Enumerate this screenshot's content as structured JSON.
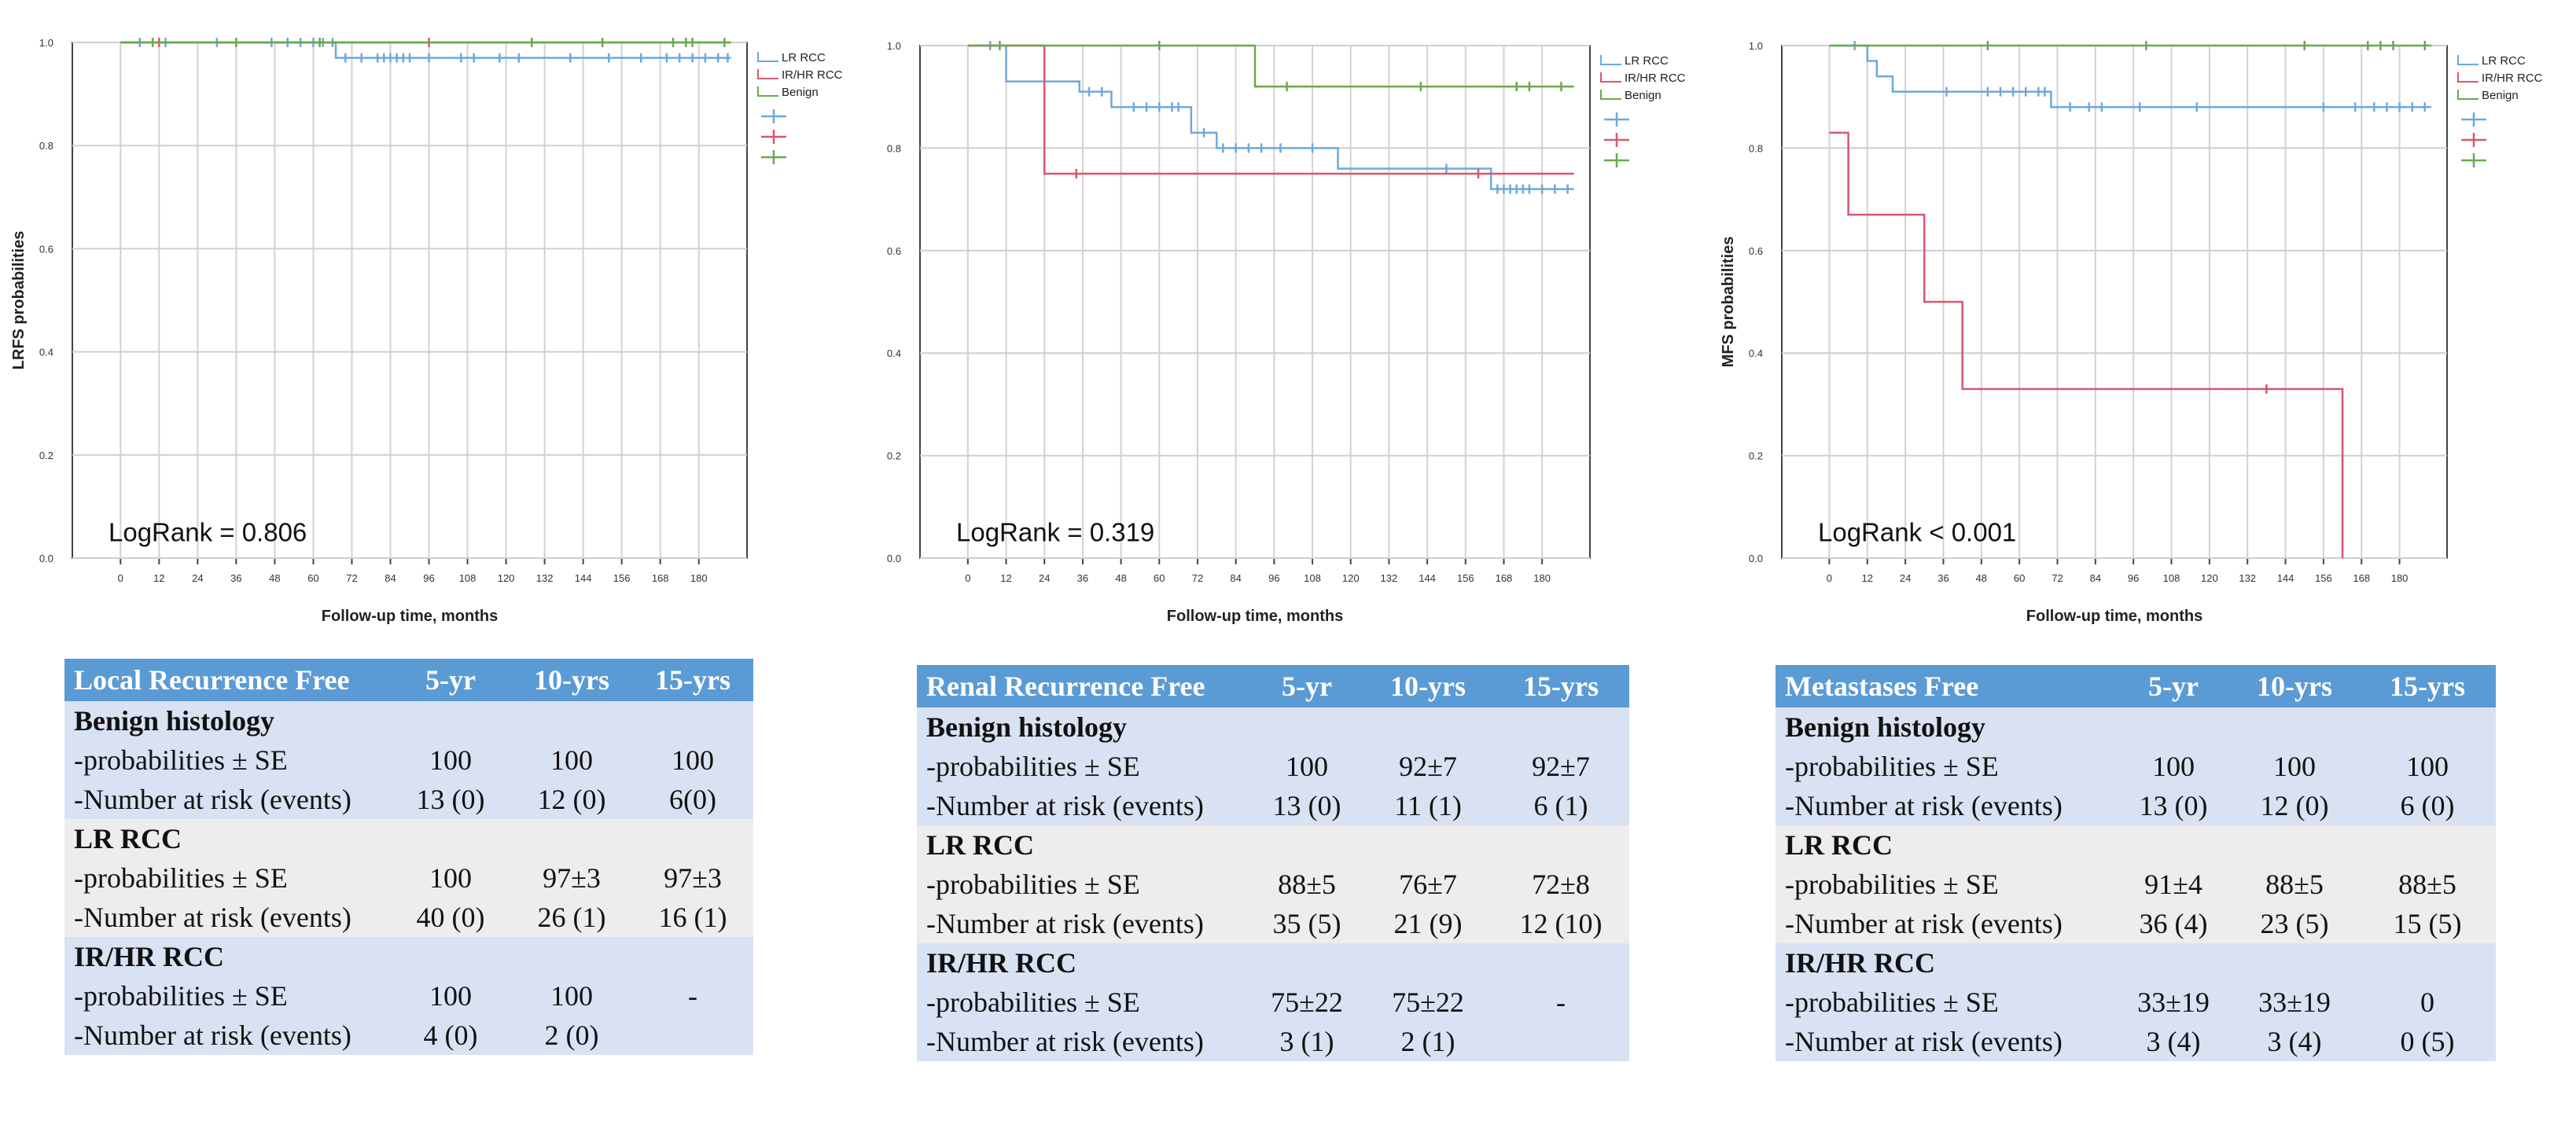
{
  "chart_data": [
    {
      "type": "line",
      "step": true,
      "ylabel": "LRFS probabilities",
      "xlabel": "Follow-up time, months",
      "annotation": "LogRank = 0.806",
      "xlim": [
        -15,
        195
      ],
      "ylim": [
        0,
        1
      ],
      "x_ticks": [
        "0",
        "12",
        "24",
        "36",
        "48",
        "60",
        "72",
        "84",
        "96",
        "108",
        "120",
        "132",
        "144",
        "156",
        "168",
        "180"
      ],
      "y_ticks": [
        "0.0",
        "0.2",
        "0.4",
        "0.6",
        "0.8",
        "1.0"
      ],
      "legend": [
        "LR RCC",
        "IR/HR RCC",
        "Benign"
      ],
      "series": [
        {
          "name": "LR RCC",
          "color": "#6fa8dc",
          "steps": [
            [
              0,
              1.0
            ],
            [
              67,
              0.97
            ],
            [
              190,
              0.97
            ]
          ],
          "censored": [
            6,
            14,
            30,
            47,
            52,
            56,
            60,
            63,
            66,
            70,
            75,
            80,
            82,
            84,
            86,
            88,
            90,
            96,
            106,
            110,
            118,
            124,
            140,
            152,
            162,
            170,
            174,
            178,
            182,
            186,
            189
          ]
        },
        {
          "name": "IR/HR RCC",
          "color": "#d9566e",
          "steps": [
            [
              0,
              1.0
            ],
            [
              190,
              1.0
            ]
          ],
          "censored": [
            12,
            96
          ]
        },
        {
          "name": "Benign",
          "color": "#6aa84f",
          "steps": [
            [
              0,
              1.0
            ],
            [
              190,
              1.0
            ]
          ],
          "censored": [
            10,
            36,
            62,
            128,
            150,
            172,
            176,
            178,
            188
          ]
        }
      ]
    },
    {
      "type": "line",
      "step": true,
      "ylabel": "",
      "xlabel": "Follow-up time, months",
      "annotation": "LogRank = 0.319",
      "xlim": [
        -15,
        195
      ],
      "ylim": [
        0,
        1
      ],
      "x_ticks": [
        "0",
        "12",
        "24",
        "36",
        "48",
        "60",
        "72",
        "84",
        "96",
        "108",
        "120",
        "132",
        "144",
        "156",
        "168",
        "180"
      ],
      "y_ticks": [
        "0.0",
        "0.2",
        "0.4",
        "0.6",
        "0.8",
        "1.0"
      ],
      "legend": [
        "LR RCC",
        "IR/HR RCC",
        "Benign"
      ],
      "series": [
        {
          "name": "LR RCC",
          "color": "#6fa8dc",
          "steps": [
            [
              0,
              1.0
            ],
            [
              12,
              0.93
            ],
            [
              35,
              0.91
            ],
            [
              45,
              0.88
            ],
            [
              70,
              0.83
            ],
            [
              78,
              0.8
            ],
            [
              116,
              0.76
            ],
            [
              164,
              0.72
            ],
            [
              190,
              0.72
            ]
          ],
          "censored": [
            7,
            38,
            42,
            52,
            56,
            60,
            64,
            66,
            74,
            80,
            84,
            88,
            92,
            98,
            108,
            150,
            166,
            168,
            170,
            172,
            174,
            176,
            180,
            184,
            188
          ]
        },
        {
          "name": "IR/HR RCC",
          "color": "#d9566e",
          "steps": [
            [
              0,
              1.0
            ],
            [
              24,
              0.75
            ],
            [
              190,
              0.75
            ]
          ],
          "censored": [
            34,
            160
          ]
        },
        {
          "name": "Benign",
          "color": "#6aa84f",
          "steps": [
            [
              0,
              1.0
            ],
            [
              90,
              0.92
            ],
            [
              190,
              0.92
            ]
          ],
          "censored": [
            10,
            60,
            100,
            142,
            172,
            176,
            186
          ]
        }
      ]
    },
    {
      "type": "line",
      "step": true,
      "ylabel": "MFS probabilities",
      "xlabel": "Follow-up time, months",
      "annotation": "LogRank < 0.001",
      "xlim": [
        -15,
        195
      ],
      "ylim": [
        0,
        1
      ],
      "x_ticks": [
        "0",
        "12",
        "24",
        "36",
        "48",
        "60",
        "72",
        "84",
        "96",
        "108",
        "120",
        "132",
        "144",
        "156",
        "168",
        "180"
      ],
      "y_ticks": [
        "0.0",
        "0.2",
        "0.4",
        "0.6",
        "0.8",
        "1.0"
      ],
      "legend": [
        "LR RCC",
        "IR/HR RCC",
        "Benign"
      ],
      "series": [
        {
          "name": "LR RCC",
          "color": "#6fa8dc",
          "steps": [
            [
              0,
              1.0
            ],
            [
              12,
              0.97
            ],
            [
              15,
              0.94
            ],
            [
              20,
              0.91
            ],
            [
              70,
              0.88
            ],
            [
              190,
              0.88
            ]
          ],
          "censored": [
            8,
            37,
            50,
            54,
            58,
            62,
            66,
            68,
            76,
            82,
            86,
            98,
            116,
            156,
            166,
            172,
            176,
            180,
            184,
            188
          ]
        },
        {
          "name": "IR/HR RCC",
          "color": "#d9566e",
          "steps": [
            [
              0,
              0.83
            ],
            [
              6,
              0.67
            ],
            [
              30,
              0.5
            ],
            [
              42,
              0.33
            ],
            [
              162,
              0.0
            ]
          ],
          "censored": [
            138
          ]
        },
        {
          "name": "Benign",
          "color": "#6aa84f",
          "steps": [
            [
              0,
              1.0
            ],
            [
              190,
              1.0
            ]
          ],
          "censored": [
            50,
            100,
            150,
            170,
            174,
            178,
            188
          ]
        }
      ]
    }
  ],
  "tables": [
    {
      "header": [
        "Local Recurrence Free",
        "5-yr",
        "10-yrs",
        "15-yrs"
      ],
      "groups": [
        {
          "name": "Benign histology",
          "rows": [
            [
              "-probabilities ± SE",
              "100",
              "100",
              "100"
            ],
            [
              "-Number at risk (events)",
              "13 (0)",
              "12 (0)",
              "6(0)"
            ]
          ]
        },
        {
          "name": "LR RCC",
          "rows": [
            [
              "-probabilities ± SE",
              "100",
              "97±3",
              "97±3"
            ],
            [
              "-Number at risk (events)",
              "40 (0)",
              "26 (1)",
              "16 (1)"
            ]
          ]
        },
        {
          "name": "IR/HR RCC",
          "rows": [
            [
              "-probabilities ± SE",
              "100",
              "100",
              "-"
            ],
            [
              "-Number at risk (events)",
              "4 (0)",
              "2 (0)",
              ""
            ]
          ]
        }
      ]
    },
    {
      "header": [
        "Renal Recurrence Free",
        "5-yr",
        "10-yrs",
        "15-yrs"
      ],
      "groups": [
        {
          "name": "Benign histology",
          "rows": [
            [
              "-probabilities ± SE",
              "100",
              "92±7",
              "92±7"
            ],
            [
              "-Number at risk (events)",
              "13 (0)",
              "11 (1)",
              "6 (1)"
            ]
          ]
        },
        {
          "name": "LR RCC",
          "rows": [
            [
              "-probabilities ± SE",
              "88±5",
              "76±7",
              "72±8"
            ],
            [
              "-Number at risk (events)",
              "35 (5)",
              "21 (9)",
              "12 (10)"
            ]
          ]
        },
        {
          "name": "IR/HR RCC",
          "rows": [
            [
              "-probabilities ± SE",
              "75±22",
              "75±22",
              "-"
            ],
            [
              "-Number at risk (events)",
              "3 (1)",
              "2 (1)",
              ""
            ]
          ]
        }
      ]
    },
    {
      "header": [
        "Metastases Free",
        "5-yr",
        "10-yrs",
        "15-yrs"
      ],
      "groups": [
        {
          "name": "Benign histology",
          "rows": [
            [
              "-probabilities ± SE",
              "100",
              "100",
              "100"
            ],
            [
              "-Number at risk (events)",
              "13 (0)",
              "12 (0)",
              "6 (0)"
            ]
          ]
        },
        {
          "name": "LR RCC",
          "rows": [
            [
              "-probabilities ± SE",
              "91±4",
              "88±5",
              "88±5"
            ],
            [
              "-Number at risk (events)",
              "36 (4)",
              "23 (5)",
              "15 (5)"
            ]
          ]
        },
        {
          "name": "IR/HR RCC",
          "rows": [
            [
              "-probabilities ± SE",
              "33±19",
              "33±19",
              "0"
            ],
            [
              "-Number at risk (events)",
              "3 (4)",
              "3 (4)",
              "0 (5)"
            ]
          ]
        }
      ]
    }
  ]
}
